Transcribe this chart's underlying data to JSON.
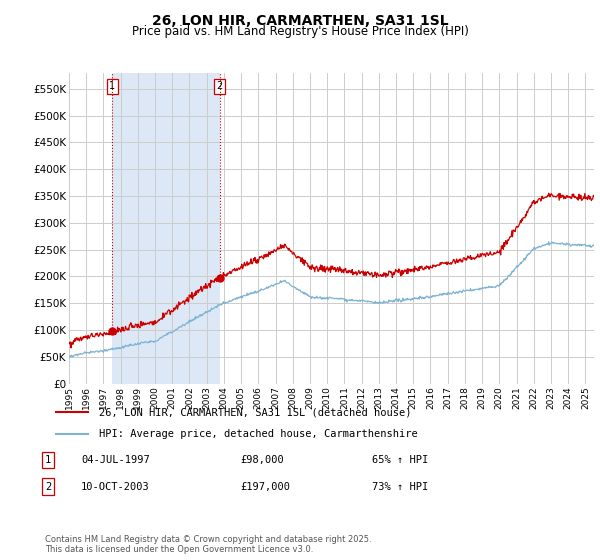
{
  "title": "26, LON HIR, CARMARTHEN, SA31 1SL",
  "subtitle": "Price paid vs. HM Land Registry's House Price Index (HPI)",
  "ylim": [
    0,
    580000
  ],
  "yticks": [
    0,
    50000,
    100000,
    150000,
    200000,
    250000,
    300000,
    350000,
    400000,
    450000,
    500000,
    550000
  ],
  "ytick_labels": [
    "£0",
    "£50K",
    "£100K",
    "£150K",
    "£200K",
    "£250K",
    "£300K",
    "£350K",
    "£400K",
    "£450K",
    "£500K",
    "£550K"
  ],
  "sale_color": "#cc0000",
  "hpi_color": "#7fb3d3",
  "shade_color": "#dce8f5",
  "sale1_year": 1997.5,
  "sale1_price": 98000,
  "sale1_label": "1",
  "sale2_year": 2003.75,
  "sale2_price": 197000,
  "sale2_label": "2",
  "legend_sale": "26, LON HIR, CARMARTHEN, SA31 1SL (detached house)",
  "legend_hpi": "HPI: Average price, detached house, Carmarthenshire",
  "annotation1_date": "04-JUL-1997",
  "annotation1_price": "£98,000",
  "annotation1_hpi": "65% ↑ HPI",
  "annotation2_date": "10-OCT-2003",
  "annotation2_price": "£197,000",
  "annotation2_hpi": "73% ↑ HPI",
  "footer": "Contains HM Land Registry data © Crown copyright and database right 2025.\nThis data is licensed under the Open Government Licence v3.0.",
  "grid_color": "#cccccc",
  "title_fontsize": 10,
  "subtitle_fontsize": 8.5
}
